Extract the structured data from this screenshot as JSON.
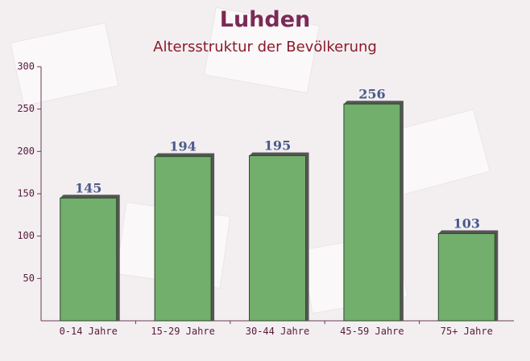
{
  "chart_data": {
    "type": "bar",
    "title": "Luhden",
    "subtitle": "Altersstruktur der Bevölkerung",
    "categories": [
      "0-14 Jahre",
      "15-29 Jahre",
      "30-44 Jahre",
      "45-59 Jahre",
      "75+ Jahre"
    ],
    "values": [
      145,
      194,
      195,
      256,
      103
    ],
    "color": "#6aaa64",
    "ylim": [
      0,
      300
    ],
    "yticks": [
      50,
      100,
      150,
      200,
      250,
      300
    ]
  }
}
